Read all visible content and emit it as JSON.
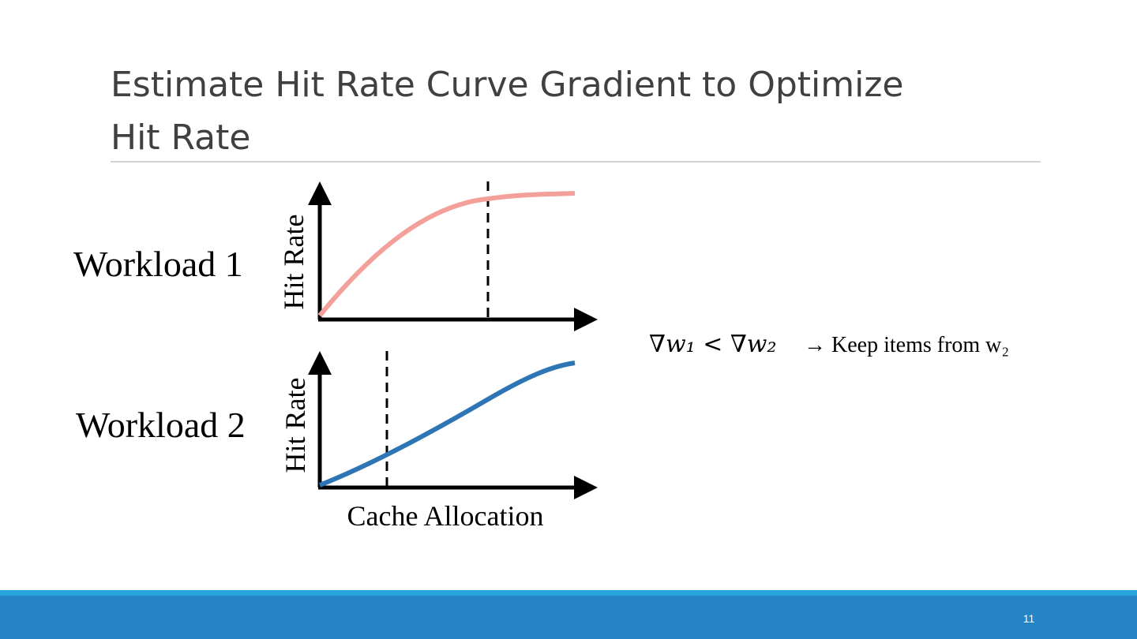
{
  "slide": {
    "title_lines": [
      "Estimate Hit Rate Curve Gradient to Optimize",
      "Hit Rate"
    ],
    "plots": [
      {
        "label": "Workload 1",
        "y_axis_label": "Hit Rate"
      },
      {
        "label": "Workload 2",
        "y_axis_label": "Hit Rate"
      }
    ],
    "x_axis_label": "Cache Allocation",
    "formula": "∇w₁ < ∇w₂",
    "conclusion": "→ Keep items from w₂",
    "page_number": "11"
  }
}
